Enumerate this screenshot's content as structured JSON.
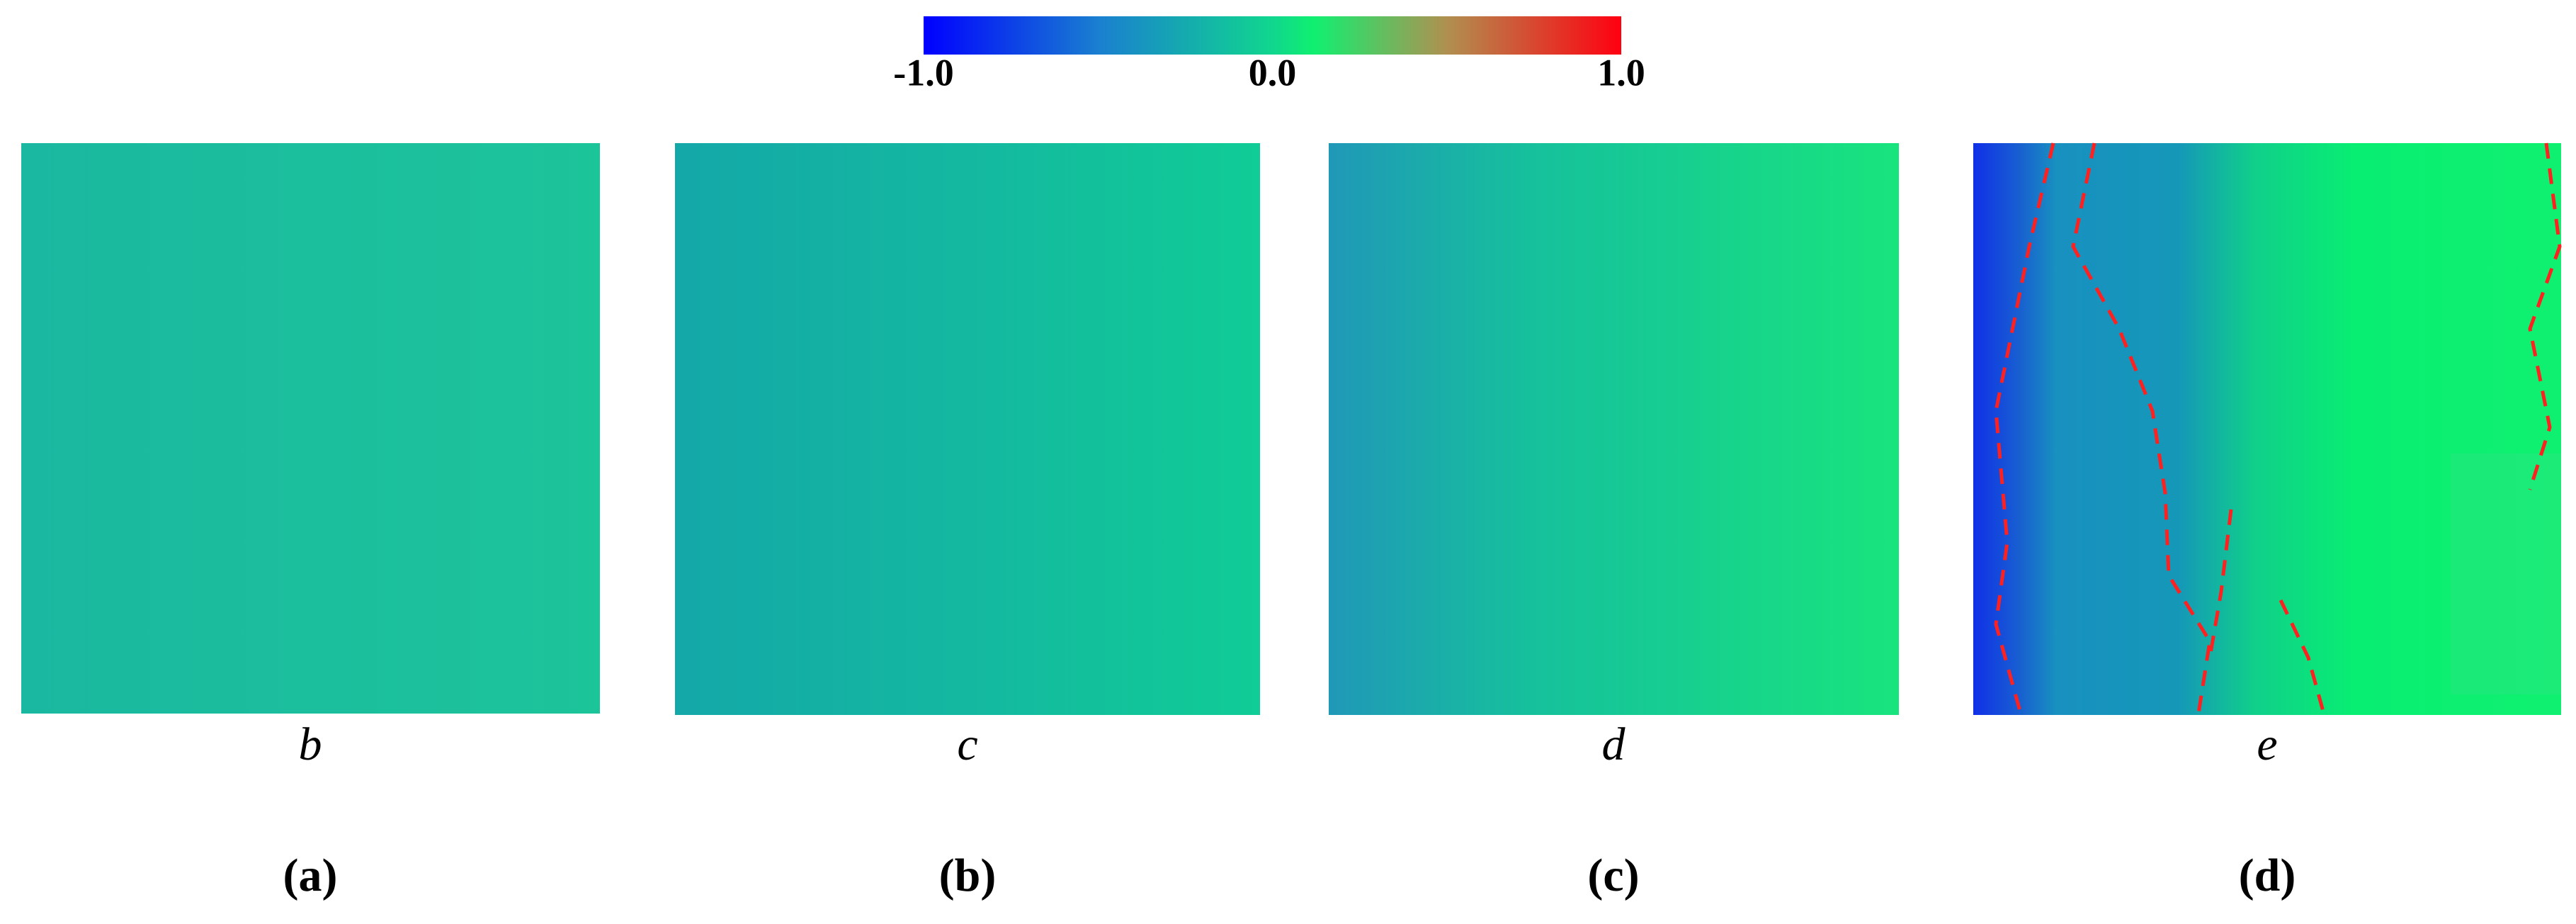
{
  "colorbar": {
    "lim": [
      -1,
      1
    ],
    "ticks": [
      {
        "value": -1,
        "label": "-1.0"
      },
      {
        "value": 0,
        "label": "0.0"
      },
      {
        "value": 1,
        "label": "1.0"
      }
    ]
  },
  "panels": [
    {
      "sublabel": "b",
      "caption": "(a)"
    },
    {
      "sublabel": "c",
      "caption": "(b)"
    },
    {
      "sublabel": "d",
      "caption": "(c)"
    },
    {
      "sublabel": "e",
      "caption": "(d)"
    }
  ]
}
